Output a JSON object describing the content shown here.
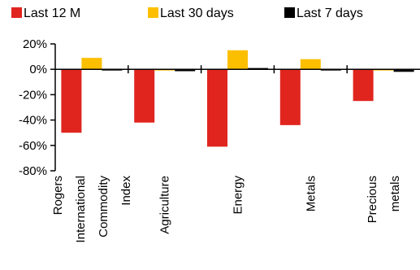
{
  "chart_data": {
    "type": "bar",
    "legend": {
      "placement": "top",
      "entries": [
        {
          "name": "Last 12 M",
          "color": "#e0251f"
        },
        {
          "name": "Last 30 days",
          "color": "#fcbf00"
        },
        {
          "name": "Last 7 days",
          "color": "#000000"
        }
      ]
    },
    "categories": [
      [
        "Rogers",
        "International",
        "Commodity",
        "Index"
      ],
      [
        "Agriculture"
      ],
      [
        "Energy"
      ],
      [
        "Metals"
      ],
      [
        "Precious",
        "metals"
      ]
    ],
    "series": [
      {
        "name": "Last 12 M",
        "color": "#e0251f",
        "values": [
          -50,
          -42,
          -61,
          -44,
          -25
        ]
      },
      {
        "name": "Last 30 days",
        "color": "#fcbf00",
        "values": [
          9,
          0,
          15,
          8,
          0
        ]
      },
      {
        "name": "Last 7 days",
        "color": "#000000",
        "values": [
          0,
          -1.5,
          1,
          0,
          -2
        ]
      }
    ],
    "ylim": [
      -80,
      20
    ],
    "yticks": [
      20,
      0,
      -20,
      -40,
      -60,
      -80
    ],
    "ytick_format": "{v}%",
    "grid": false
  }
}
